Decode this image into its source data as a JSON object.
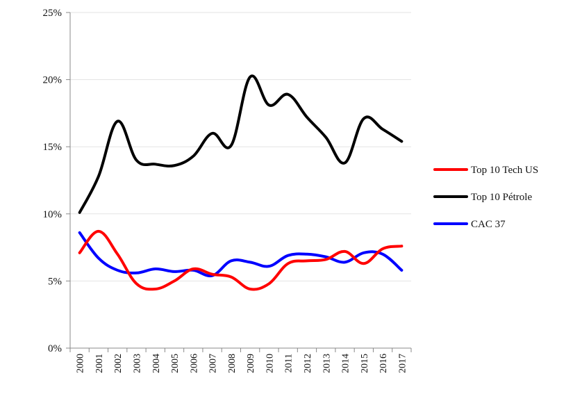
{
  "chart_data": {
    "type": "line",
    "title": "",
    "xlabel": "",
    "ylabel": "",
    "x": [
      "2000",
      "2001",
      "2002",
      "2003",
      "2004",
      "2005",
      "2006",
      "2007",
      "2008",
      "2009",
      "2010",
      "2011",
      "2012",
      "2013",
      "2014",
      "2015",
      "2016",
      "2017"
    ],
    "ylim": [
      0,
      25
    ],
    "yticks": [
      0,
      5,
      10,
      15,
      20,
      25
    ],
    "ytick_labels": [
      "0%",
      "5%",
      "10%",
      "15%",
      "20%",
      "25%"
    ],
    "grid": "horizontal",
    "legend_position": "right",
    "series": [
      {
        "name": "Top 10 Tech US",
        "color": "#ff0000",
        "values": [
          7.1,
          8.7,
          7.0,
          4.8,
          4.4,
          5.0,
          5.9,
          5.5,
          5.3,
          4.4,
          4.8,
          6.3,
          6.5,
          6.6,
          7.2,
          6.3,
          7.4,
          7.6
        ]
      },
      {
        "name": "Top 10 Pétrole",
        "color": "#000000",
        "values": [
          10.1,
          12.8,
          16.9,
          14.0,
          13.7,
          13.6,
          14.3,
          16.0,
          15.1,
          20.2,
          18.1,
          18.9,
          17.2,
          15.7,
          13.8,
          17.1,
          16.3,
          15.4
        ]
      },
      {
        "name": "CAC 37",
        "color": "#0000ff",
        "values": [
          8.6,
          6.7,
          5.8,
          5.6,
          5.9,
          5.7,
          5.8,
          5.4,
          6.5,
          6.4,
          6.1,
          6.9,
          7.0,
          6.8,
          6.4,
          7.1,
          7.0,
          5.8
        ]
      }
    ]
  }
}
